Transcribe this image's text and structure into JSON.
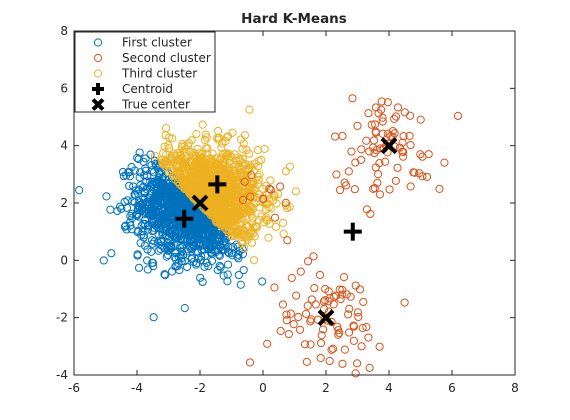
{
  "chart_data": {
    "type": "scatter",
    "title": "Hard K-Means",
    "xlabel": "",
    "ylabel": "",
    "xlim": [
      -6,
      8
    ],
    "ylim": [
      -4,
      8
    ],
    "xticks": [
      -6,
      -4,
      -2,
      0,
      2,
      4,
      6,
      8
    ],
    "yticks": [
      -4,
      -2,
      0,
      2,
      4,
      6,
      8
    ],
    "xtick_labels": [
      "-6",
      "-4",
      "-2",
      "0",
      "2",
      "4",
      "6",
      "8"
    ],
    "ytick_labels": [
      "-4",
      "-2",
      "0",
      "2",
      "4",
      "6",
      "8"
    ],
    "grid": false,
    "legend_position": "top-left",
    "series": [
      {
        "name": "First cluster",
        "marker": "circle-open",
        "color": "#0072BD",
        "point_count_approx": 1000,
        "distribution": {
          "center": [
            -2.9,
            1.2
          ],
          "spread": 0.75,
          "side_of_boundary": "below"
        }
      },
      {
        "name": "Second cluster",
        "marker": "circle-open",
        "color": "#D95319",
        "point_count_approx": 200,
        "groups": [
          {
            "center": [
              4,
              4
            ],
            "spread": 0.9
          },
          {
            "center": [
              2,
              -2
            ],
            "spread": 0.9
          },
          {
            "center": [
              0.2,
              2.0
            ],
            "spread": 0.5
          }
        ]
      },
      {
        "name": "Third cluster",
        "marker": "circle-open",
        "color": "#EDB120",
        "point_count_approx": 1000,
        "distribution": {
          "center": [
            -1.3,
            2.8
          ],
          "spread": 0.75,
          "side_of_boundary": "above"
        }
      },
      {
        "name": "Centroid",
        "marker": "plus",
        "color": "#000000",
        "points": [
          [
            -2.5,
            1.45
          ],
          [
            -1.45,
            2.65
          ],
          [
            2.85,
            1.0
          ]
        ]
      },
      {
        "name": "True center",
        "marker": "x",
        "color": "#000000",
        "points": [
          [
            -2,
            2
          ],
          [
            4,
            4
          ],
          [
            2,
            -2
          ]
        ]
      }
    ],
    "decision_boundary": {
      "description": "line separating first and third cluster",
      "points": [
        [
          -3.4,
          3.5
        ],
        [
          -0.3,
          0.0
        ]
      ]
    }
  }
}
